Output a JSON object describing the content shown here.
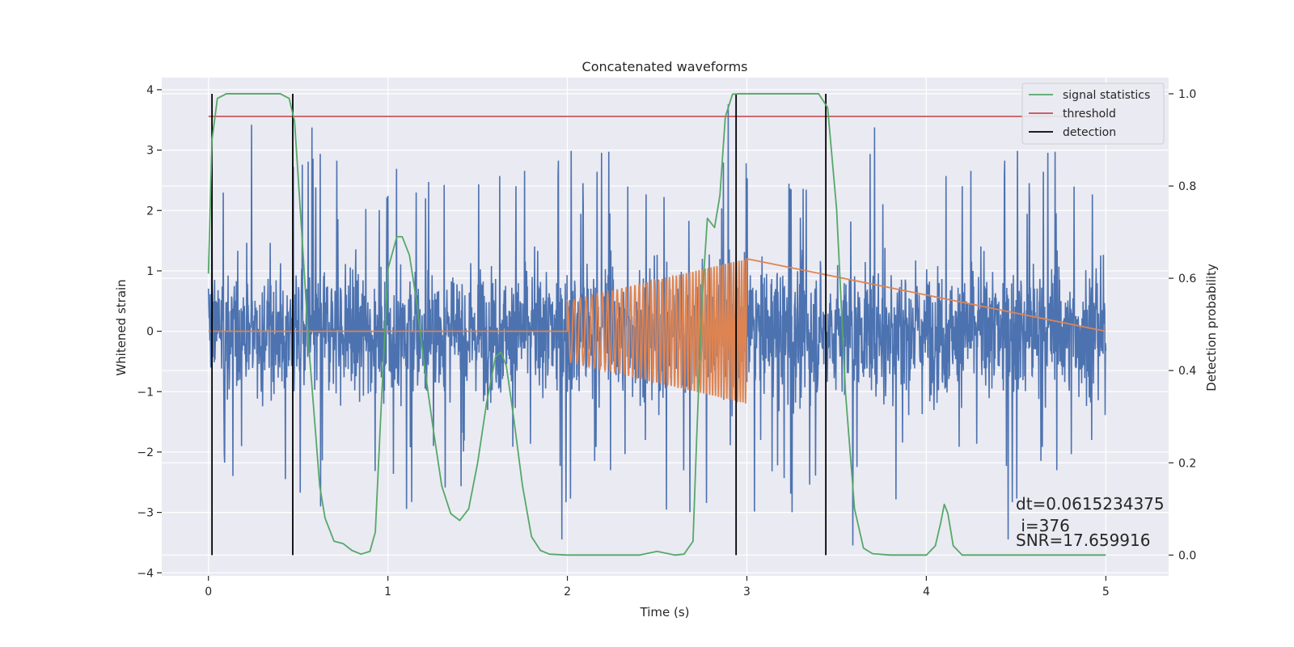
{
  "chart_data": {
    "type": "line",
    "title": "Concatenated waveforms",
    "xlabel": "Time (s)",
    "ylabel": "Whitened strain",
    "ylabel_right": "Detection probability",
    "xlim": [
      -0.26,
      5.35
    ],
    "ylim": [
      -4.05,
      4.2
    ],
    "ylim_right": [
      -0.045,
      1.035
    ],
    "xticks": [
      0,
      1,
      2,
      3,
      4,
      5
    ],
    "yticks": [
      -4,
      -3,
      -2,
      -1,
      0,
      1,
      2,
      3,
      4
    ],
    "yticks_right": [
      0.0,
      0.2,
      0.4,
      0.6,
      0.8,
      1.0
    ],
    "xtick_labels": [
      "0",
      "1",
      "2",
      "3",
      "4",
      "5"
    ],
    "ytick_labels": [
      "−4",
      "−3",
      "−2",
      "−1",
      "0",
      "1",
      "2",
      "3",
      "4"
    ],
    "ytick_labels_right": [
      "0.0",
      "0.2",
      "0.4",
      "0.6",
      "0.8",
      "1.0"
    ],
    "grid": true,
    "legend_position": "top-right",
    "colors": {
      "strain": "#4c72b0",
      "template": "#dd8452",
      "signal_statistics": "#55a868",
      "threshold": "#c44e52",
      "detection": "#000000",
      "background": "#eaeaf2",
      "grid": "#ffffff"
    },
    "series": [
      {
        "name": "signal statistics",
        "axis": "right",
        "x": [
          0.0,
          0.02,
          0.05,
          0.1,
          0.2,
          0.3,
          0.4,
          0.45,
          0.48,
          0.52,
          0.56,
          0.6,
          0.62,
          0.65,
          0.7,
          0.75,
          0.8,
          0.85,
          0.9,
          0.93,
          0.96,
          1.0,
          1.05,
          1.08,
          1.12,
          1.16,
          1.2,
          1.25,
          1.3,
          1.35,
          1.4,
          1.45,
          1.5,
          1.55,
          1.6,
          1.63,
          1.66,
          1.7,
          1.75,
          1.8,
          1.85,
          1.9,
          2.0,
          2.2,
          2.4,
          2.5,
          2.6,
          2.65,
          2.7,
          2.72,
          2.75,
          2.78,
          2.82,
          2.85,
          2.88,
          2.92,
          2.96,
          3.0,
          3.2,
          3.4,
          3.45,
          3.5,
          3.55,
          3.6,
          3.65,
          3.7,
          3.8,
          4.0,
          4.05,
          4.08,
          4.1,
          4.12,
          4.15,
          4.2,
          4.5,
          5.0
        ],
        "values": [
          0.61,
          0.9,
          0.99,
          1.0,
          1.0,
          1.0,
          1.0,
          0.99,
          0.94,
          0.7,
          0.45,
          0.25,
          0.15,
          0.08,
          0.03,
          0.025,
          0.01,
          0.002,
          0.008,
          0.05,
          0.3,
          0.62,
          0.69,
          0.69,
          0.65,
          0.55,
          0.42,
          0.28,
          0.15,
          0.09,
          0.075,
          0.1,
          0.2,
          0.33,
          0.43,
          0.44,
          0.41,
          0.3,
          0.15,
          0.04,
          0.01,
          0.002,
          0.0,
          0.0,
          0.0,
          0.008,
          0.0,
          0.002,
          0.03,
          0.25,
          0.55,
          0.73,
          0.71,
          0.78,
          0.95,
          0.999,
          1.0,
          1.0,
          1.0,
          1.0,
          0.97,
          0.75,
          0.35,
          0.1,
          0.015,
          0.003,
          0.0,
          0.0,
          0.02,
          0.07,
          0.11,
          0.09,
          0.02,
          0.0,
          0.0,
          0.0
        ]
      },
      {
        "name": "threshold",
        "axis": "right",
        "x": [
          0.0,
          5.0
        ],
        "values": [
          0.951,
          0.951
        ]
      },
      {
        "name": "detection",
        "axis": "right",
        "type": "vlines",
        "x": [
          0.02,
          0.47,
          2.94,
          3.44
        ],
        "ymin": 0.0,
        "ymax": 1.0
      },
      {
        "axis": "left",
        "type": "noise",
        "x_range": [
          0.0,
          5.0
        ],
        "typical_range": [
          -2.5,
          2.5
        ],
        "extremes": [
          -3.6,
          3.8
        ]
      },
      {
        "axis": "left",
        "type": "chirp",
        "x_range": [
          2.0,
          3.0
        ],
        "amplitude_start": 0.5,
        "amplitude_end": 1.2,
        "cycles": 48,
        "flat_value": 0.0
      }
    ],
    "annotations": [
      {
        "text": "dt=0.0615234375"
      },
      {
        "text": " i=376"
      },
      {
        "text": "SNR=17.659916"
      }
    ]
  }
}
